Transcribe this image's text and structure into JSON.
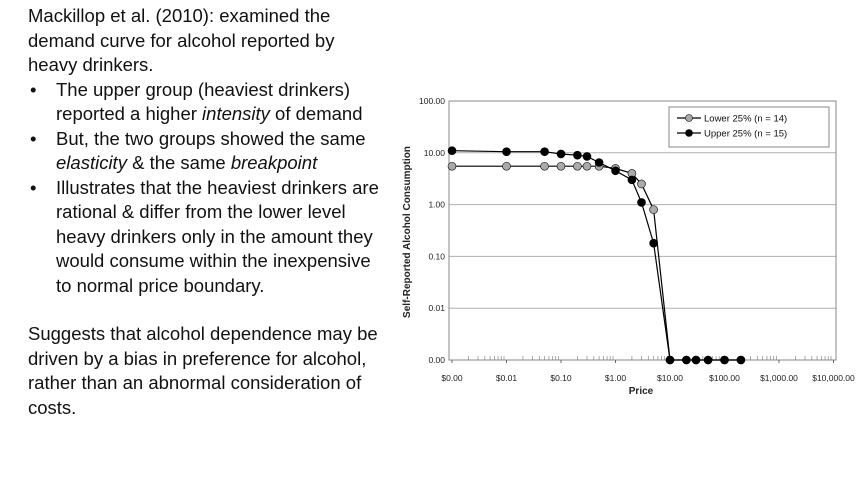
{
  "text": {
    "intro": "Mackillop et al. (2010): examined the demand curve for alcohol reported by heavy drinkers.",
    "bullets": [
      [
        {
          "t": "The upper group (heaviest drinkers) reported a higher "
        },
        {
          "t": "intensity",
          "i": true
        },
        {
          "t": " of demand"
        }
      ],
      [
        {
          "t": "But, the two groups showed the same "
        },
        {
          "t": "elasticity",
          "i": true
        },
        {
          "t": " & the same "
        },
        {
          "t": "breakpoint",
          "i": true
        }
      ],
      [
        {
          "t": "Illustrates that the heaviest drinkers are rational & differ from the lower level heavy drinkers only in the amount they would consume within the inexpensive to normal price boundary."
        }
      ]
    ],
    "conclusion": "Suggests that alcohol dependence may be driven by a bias in preference for alcohol, rather than an abnormal consideration of costs."
  },
  "chart_data": {
    "type": "line",
    "xlabel": "Price",
    "ylabel": "Self-Reported Alcohol Consumption",
    "x_scale": "log",
    "y_scale": "log",
    "x_ticks": [
      "$0.00",
      "$0.01",
      "$0.10",
      "$1.00",
      "$10.00",
      "$100.00",
      "$1,000.00",
      "$10,000.00"
    ],
    "y_ticks": [
      "0.00",
      "0.01",
      "0.10",
      "1.00",
      "10.00",
      "100.00"
    ],
    "grid": "horizontal",
    "legend_position": "top-right",
    "series": [
      {
        "name": "Lower 25% (n = 14)",
        "color": "#aaaaaa",
        "points": [
          [
            0.001,
            5.5
          ],
          [
            0.01,
            5.5
          ],
          [
            0.05,
            5.5
          ],
          [
            0.1,
            5.5
          ],
          [
            0.2,
            5.5
          ],
          [
            0.3,
            5.5
          ],
          [
            0.5,
            5.5
          ],
          [
            1,
            5.0
          ],
          [
            2,
            4.0
          ],
          [
            3,
            2.5
          ],
          [
            5,
            0.8
          ],
          [
            10,
            0.001
          ],
          [
            20,
            0.001
          ],
          [
            30,
            0.001
          ],
          [
            50,
            0.001
          ],
          [
            100,
            0.001
          ],
          [
            200,
            0.001
          ]
        ]
      },
      {
        "name": "Upper 25% (n = 15)",
        "color": "#000000",
        "points": [
          [
            0.001,
            11
          ],
          [
            0.01,
            10.5
          ],
          [
            0.05,
            10.5
          ],
          [
            0.1,
            9.5
          ],
          [
            0.2,
            9
          ],
          [
            0.3,
            8.5
          ],
          [
            0.5,
            6.5
          ],
          [
            1,
            4.5
          ],
          [
            2,
            3
          ],
          [
            3,
            1.1
          ],
          [
            5,
            0.18
          ],
          [
            10,
            0.001
          ],
          [
            20,
            0.001
          ],
          [
            30,
            0.001
          ],
          [
            50,
            0.001
          ],
          [
            100,
            0.001
          ],
          [
            200,
            0.001
          ]
        ]
      }
    ]
  }
}
